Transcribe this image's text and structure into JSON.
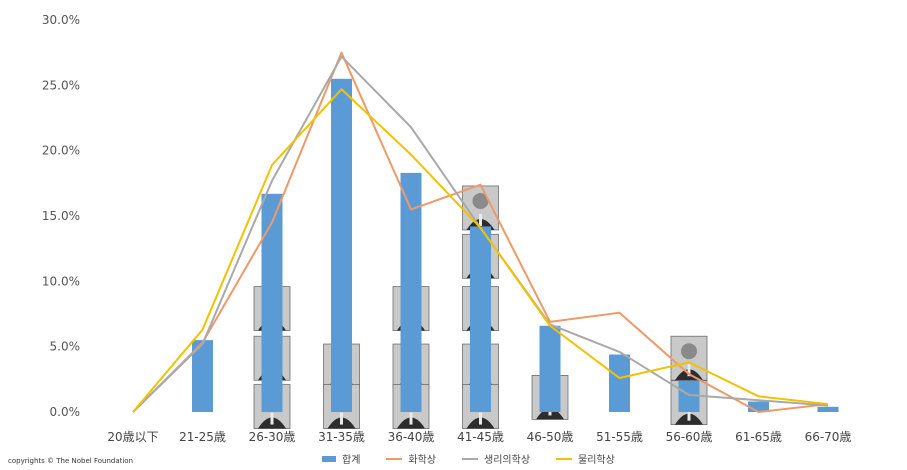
{
  "chart_data": {
    "type": "bar",
    "categories": [
      "20歳以下",
      "21-25歳",
      "26-30歳",
      "31-35歳",
      "36-40歳",
      "41-45歳",
      "46-50歳",
      "51-55歳",
      "56-60歳",
      "61-65歳",
      "66-70歳"
    ],
    "ylim": [
      0,
      30
    ],
    "yticks": [
      "0.0%",
      "5.0%",
      "10.0%",
      "15.0%",
      "20.0%",
      "25.0%",
      "30.0%"
    ],
    "ytick_values": [
      0,
      5,
      10,
      15,
      20,
      25,
      30
    ],
    "grid": false,
    "legend_position": "bottom",
    "series": [
      {
        "name": "합계",
        "kind": "bar",
        "color": "#5b9bd5",
        "values": [
          0,
          5.5,
          16.7,
          25.5,
          18.3,
          14.2,
          6.6,
          4.4,
          2.4,
          0.8,
          0.4
        ]
      },
      {
        "name": "화학상",
        "kind": "line",
        "color": "#ed9a6a",
        "values": [
          0,
          5.3,
          14.5,
          27.5,
          15.5,
          17.4,
          6.9,
          7.6,
          2.9,
          0,
          0.6
        ]
      },
      {
        "name": "생리의학상",
        "kind": "line",
        "color": "#a9a9a9",
        "values": [
          0,
          5.2,
          17.7,
          27.2,
          21.8,
          14.1,
          6.7,
          4.6,
          1.3,
          0.9,
          0.5
        ]
      },
      {
        "name": "물리학상",
        "kind": "line",
        "color": "#f2c200",
        "values": [
          0,
          6.3,
          18.9,
          24.7,
          19.7,
          14.1,
          6.6,
          2.6,
          3.8,
          1.2,
          0.6
        ]
      }
    ]
  },
  "copyright": "copyrights © The Nobel Foundation",
  "portraits": [
    {
      "cat": 3,
      "value": 9.6,
      "name": "portrait-icon"
    },
    {
      "cat": 4,
      "value": 9.6,
      "name": "portrait-icon"
    },
    {
      "cat": 2,
      "value": 9.6,
      "name": "portrait-icon"
    },
    {
      "cat": 5,
      "value": 9.6,
      "name": "portrait-icon"
    }
  ]
}
